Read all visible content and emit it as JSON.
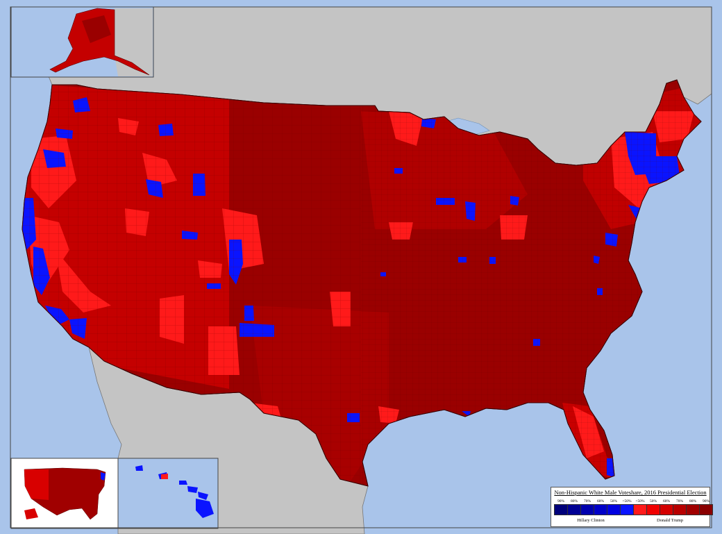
{
  "legend": {
    "title": "Non-Hispanic White Male Voteshare, 2016 Presidential Election",
    "clinton_pcts": [
      "90%",
      "80%",
      "70%",
      "60%",
      "50%",
      "<50%"
    ],
    "trump_pcts": [
      "<50%",
      "50%",
      "60%",
      "70%",
      "80%",
      "90%"
    ],
    "clinton_label": "Hillary Clinton",
    "trump_label": "Donald Trump",
    "clinton_colors": [
      "#00007a",
      "#000094",
      "#0000ae",
      "#0000c8",
      "#0000e0",
      "#0a14ff"
    ],
    "trump_colors": [
      "#ff1a1a",
      "#f00000",
      "#d40000",
      "#b80000",
      "#a10000",
      "#8a0000"
    ]
  },
  "colors": {
    "ocean": "#a9c4ea",
    "foreign_land": "#c4c4c4",
    "border": "#5e5e5e",
    "inset_bg": "#ffffff"
  }
}
